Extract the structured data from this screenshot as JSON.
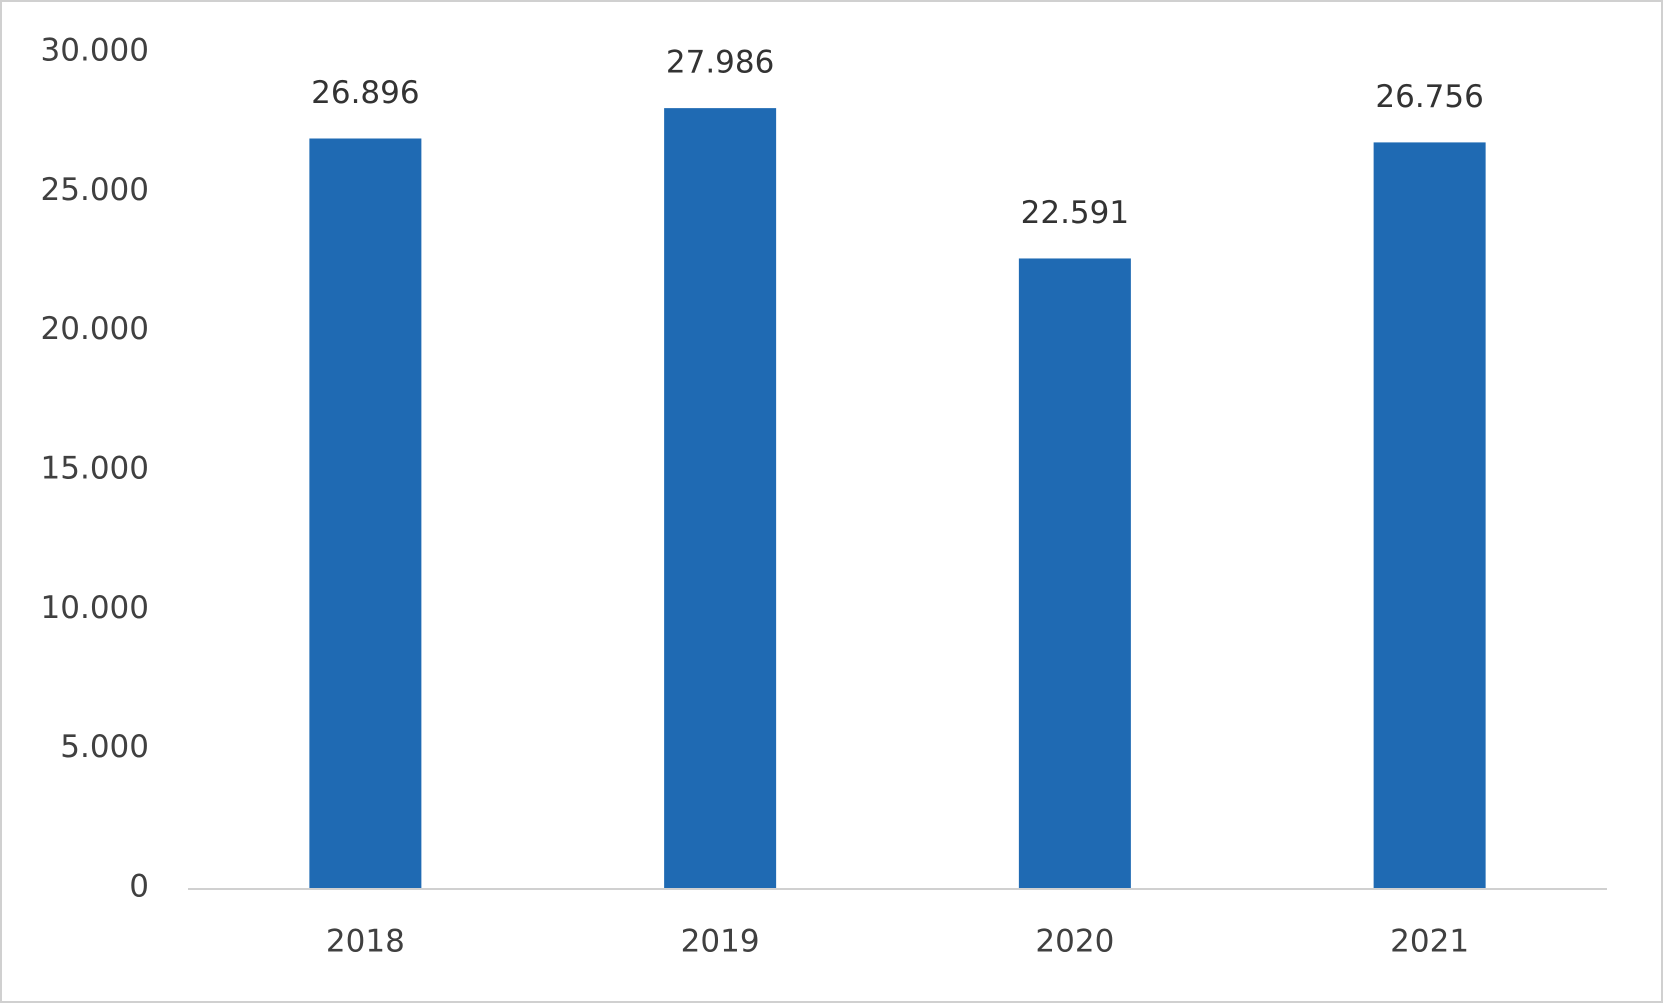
{
  "chart_data": {
    "type": "bar",
    "categories": [
      "2018",
      "2019",
      "2020",
      "2021"
    ],
    "values": [
      26896,
      27986,
      22591,
      26756
    ],
    "value_labels": [
      "26.896",
      "27.986",
      "22.591",
      "26.756"
    ],
    "color": "#1f6ab3",
    "ylim": [
      0,
      30000
    ],
    "yticks": [
      0,
      {
        "value": 5000,
        "label": "5.000"
      },
      {
        "value": 10000,
        "label": "10.000"
      },
      {
        "value": 15000,
        "label": "15.000"
      },
      {
        "value": 20000,
        "label": "20.000"
      },
      {
        "value": 25000,
        "label": "25.000"
      },
      {
        "value": 30000,
        "label": "30.000"
      }
    ],
    "grid": false
  }
}
